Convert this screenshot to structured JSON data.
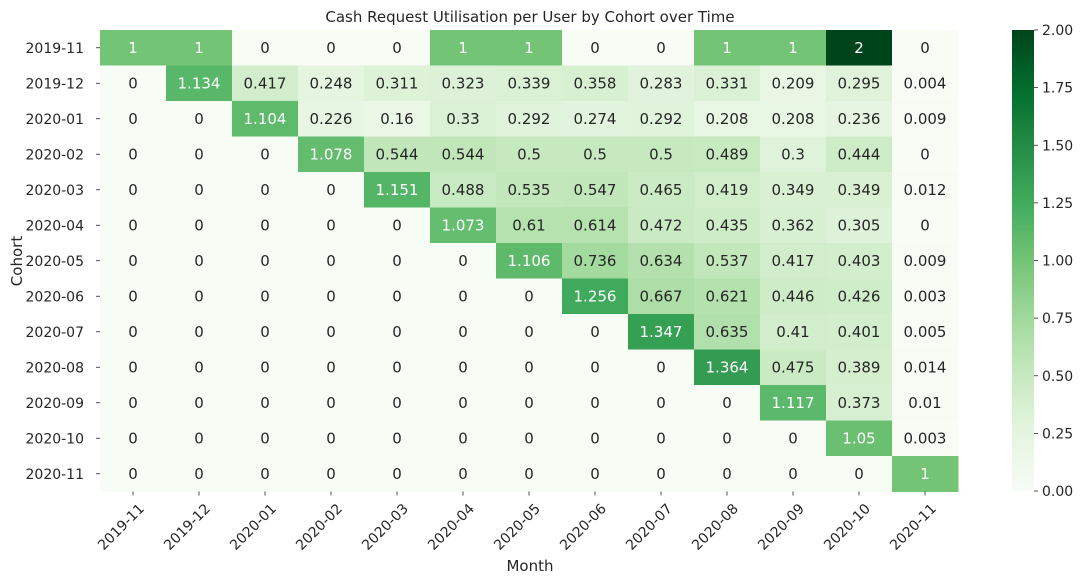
{
  "chart_data": {
    "type": "heatmap",
    "title": "Cash Request Utilisation per User by Cohort over Time",
    "xlabel": "Month",
    "ylabel": "Cohort",
    "x_categories": [
      "2019-11",
      "2019-12",
      "2020-01",
      "2020-02",
      "2020-03",
      "2020-04",
      "2020-05",
      "2020-06",
      "2020-07",
      "2020-08",
      "2020-09",
      "2020-10",
      "2020-11"
    ],
    "y_categories": [
      "2019-11",
      "2019-12",
      "2020-01",
      "2020-02",
      "2020-03",
      "2020-04",
      "2020-05",
      "2020-06",
      "2020-07",
      "2020-08",
      "2020-09",
      "2020-10",
      "2020-11"
    ],
    "values": [
      [
        1,
        1,
        0,
        0,
        0,
        1,
        1,
        0,
        0,
        1,
        1,
        2,
        0
      ],
      [
        0,
        1.134,
        0.417,
        0.248,
        0.311,
        0.323,
        0.339,
        0.358,
        0.283,
        0.331,
        0.209,
        0.295,
        0.004
      ],
      [
        0,
        0,
        1.104,
        0.226,
        0.16,
        0.33,
        0.292,
        0.274,
        0.292,
        0.208,
        0.208,
        0.236,
        0.009
      ],
      [
        0,
        0,
        0,
        1.078,
        0.544,
        0.544,
        0.5,
        0.5,
        0.5,
        0.489,
        0.3,
        0.444,
        0
      ],
      [
        0,
        0,
        0,
        0,
        1.151,
        0.488,
        0.535,
        0.547,
        0.465,
        0.419,
        0.349,
        0.349,
        0.012
      ],
      [
        0,
        0,
        0,
        0,
        0,
        1.073,
        0.61,
        0.614,
        0.472,
        0.435,
        0.362,
        0.305,
        0
      ],
      [
        0,
        0,
        0,
        0,
        0,
        0,
        1.106,
        0.736,
        0.634,
        0.537,
        0.417,
        0.403,
        0.009
      ],
      [
        0,
        0,
        0,
        0,
        0,
        0,
        0,
        1.256,
        0.667,
        0.621,
        0.446,
        0.426,
        0.003
      ],
      [
        0,
        0,
        0,
        0,
        0,
        0,
        0,
        0,
        1.347,
        0.635,
        0.41,
        0.401,
        0.005
      ],
      [
        0,
        0,
        0,
        0,
        0,
        0,
        0,
        0,
        0,
        1.364,
        0.475,
        0.389,
        0.014
      ],
      [
        0,
        0,
        0,
        0,
        0,
        0,
        0,
        0,
        0,
        0,
        1.117,
        0.373,
        0.01
      ],
      [
        0,
        0,
        0,
        0,
        0,
        0,
        0,
        0,
        0,
        0,
        0,
        1.05,
        0.003
      ],
      [
        0,
        0,
        0,
        0,
        0,
        0,
        0,
        0,
        0,
        0,
        0,
        0,
        1
      ]
    ],
    "colormap": "Greens",
    "vmin": 0,
    "vmax": 2,
    "colorbar_ticks": [
      "0.00",
      "0.25",
      "0.50",
      "0.75",
      "1.00",
      "1.25",
      "1.50",
      "1.75",
      "2.00"
    ],
    "annotations": true
  }
}
